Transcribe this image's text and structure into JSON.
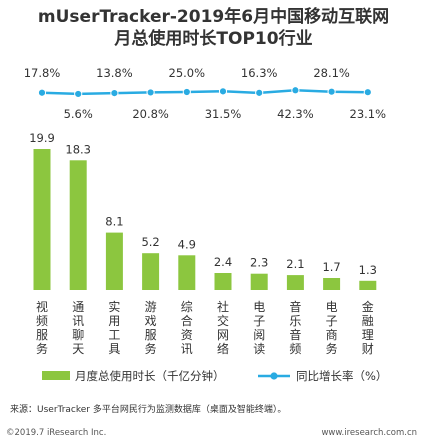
{
  "title_line1": "mUserTracker-2019年6月中国移动互联网",
  "title_line2": "月总使用时长TOP10行业",
  "colors": {
    "bar": "#8cc63f",
    "line": "#29abe2",
    "text": "#333333"
  },
  "chart_data": {
    "type": "bar",
    "categories": [
      "视频服务",
      "通讯聊天",
      "实用工具",
      "游戏服务",
      "综合资讯",
      "社交网络",
      "电子阅读",
      "音乐音频",
      "电子商务",
      "金融理财"
    ],
    "series": [
      {
        "name": "月度总使用时长（千亿分钟）",
        "type": "bar",
        "values": [
          19.9,
          18.3,
          8.1,
          5.2,
          4.9,
          2.4,
          2.3,
          2.1,
          1.7,
          1.3
        ]
      },
      {
        "name": "同比增长率（%）",
        "type": "line",
        "values": [
          17.8,
          5.6,
          13.8,
          20.8,
          25.0,
          31.5,
          16.3,
          42.3,
          28.1,
          23.1
        ],
        "labels": [
          "17.8%",
          "5.6%",
          "13.8%",
          "20.8%",
          "25.0%",
          "31.5%",
          "16.3%",
          "42.3%",
          "28.1%",
          "23.1%"
        ]
      }
    ],
    "title": "mUserTracker-2019年6月中国移动互联网月总使用时长TOP10行业",
    "legend_position": "bottom"
  },
  "source": "来源：UserTracker 多平台网民行为监测数据库（桌面及智能终端）。",
  "footer_left": "©2019.7 iResearch Inc.",
  "footer_right": "www.iresearch.com.cn"
}
